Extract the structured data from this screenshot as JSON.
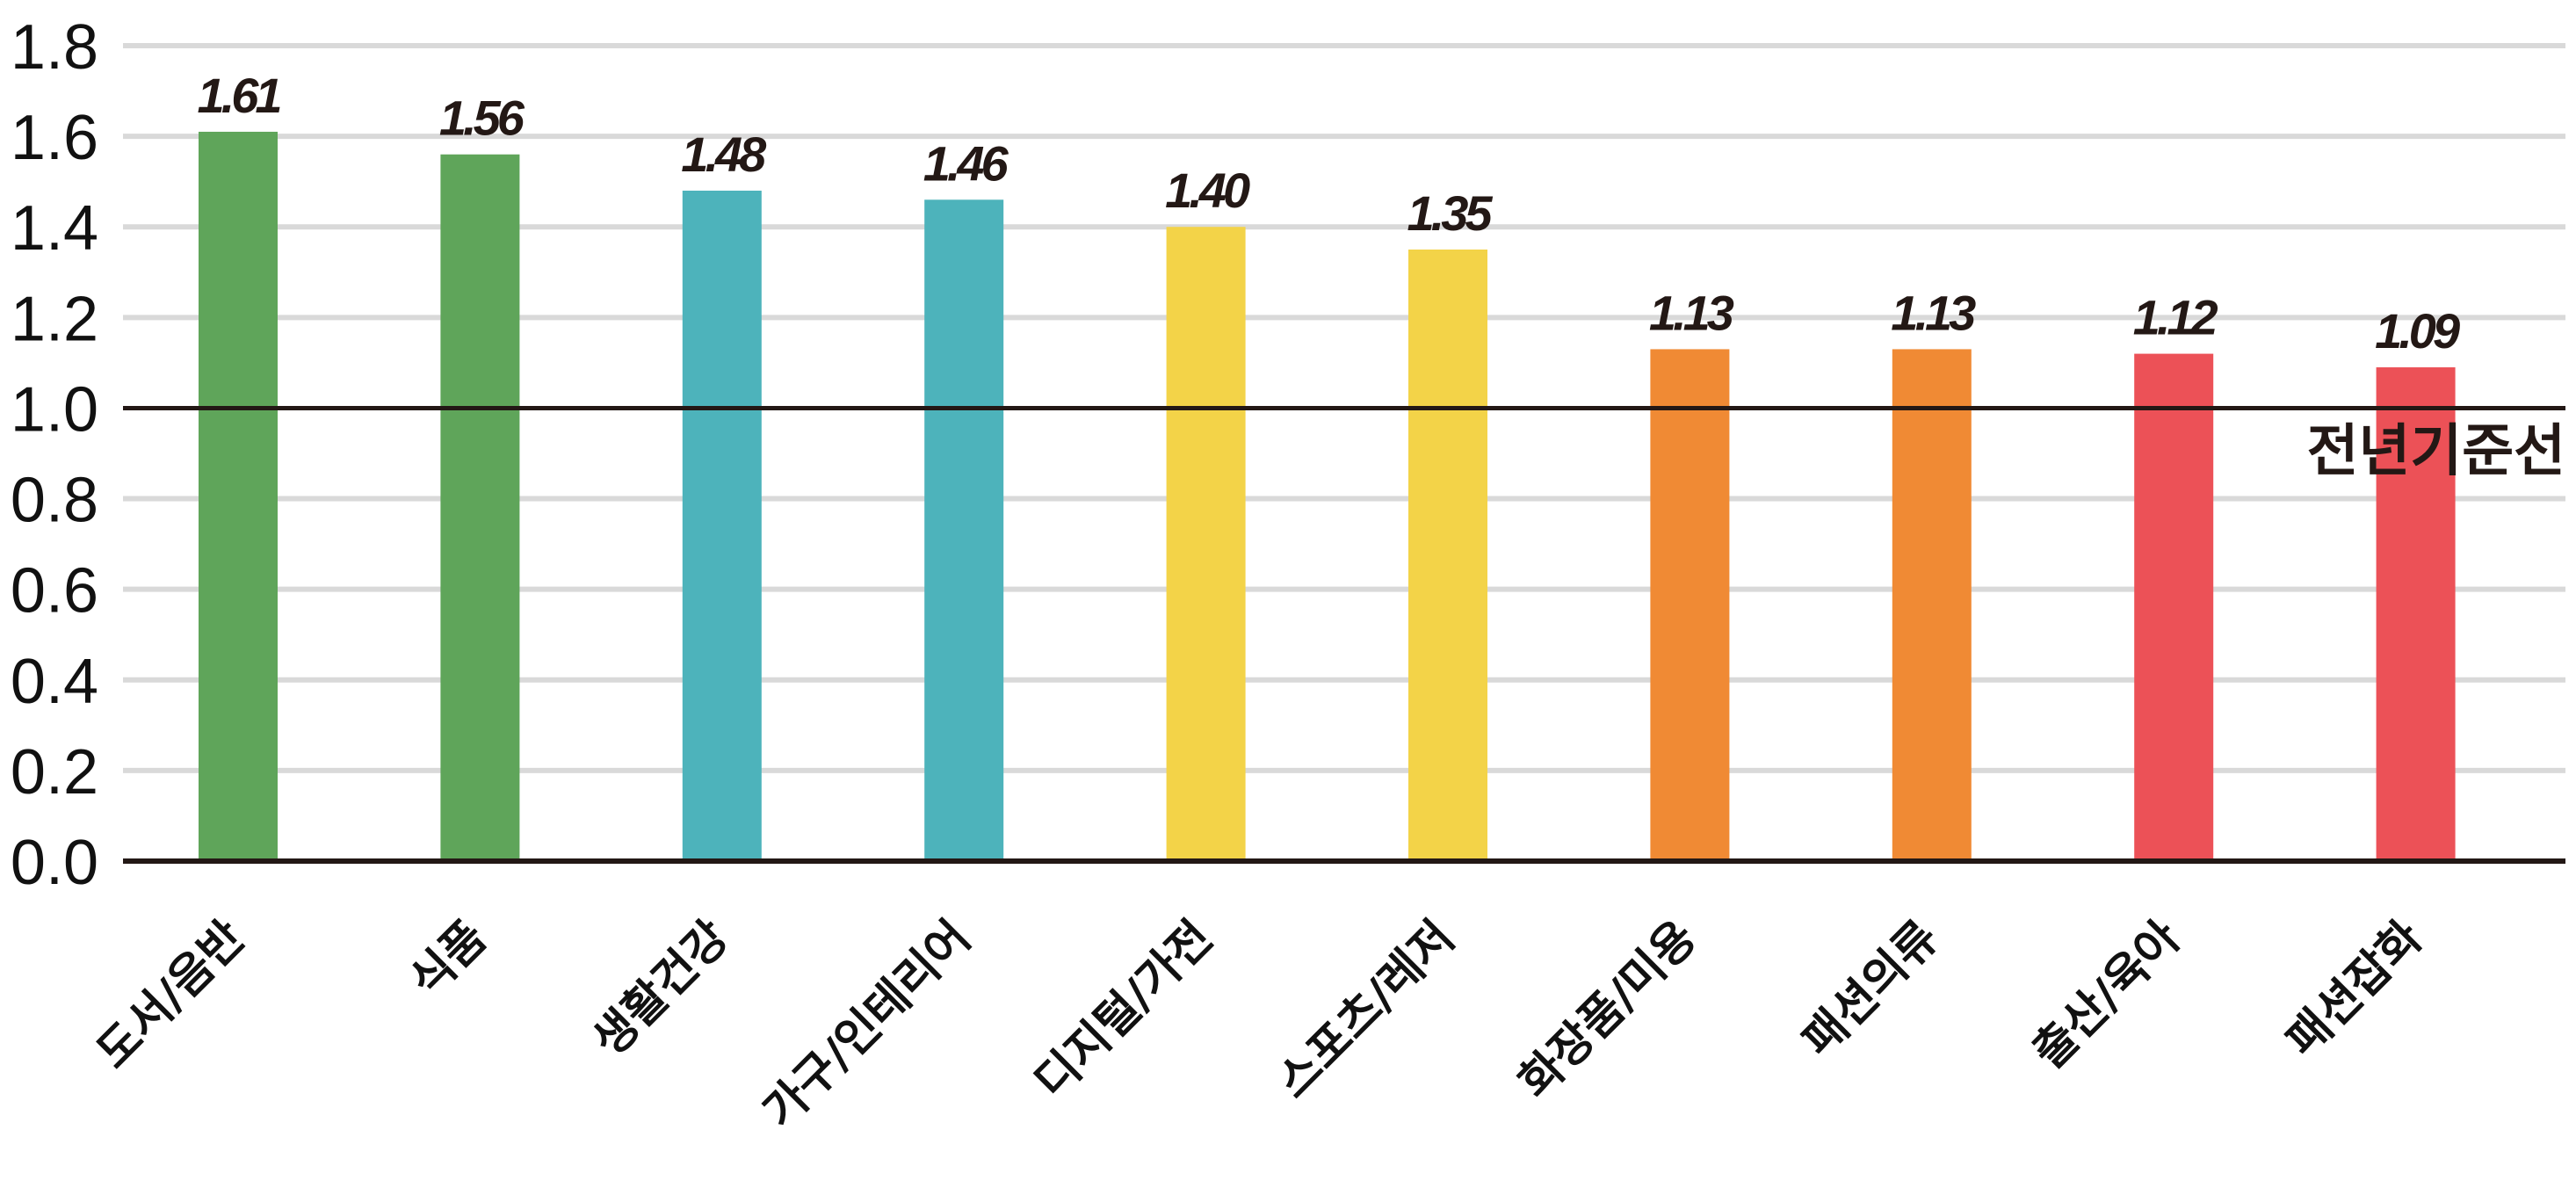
{
  "chart_data": {
    "type": "bar",
    "categories": [
      "도서/음반",
      "식품",
      "생활건강",
      "가구/인테리어",
      "디지털/가전",
      "스포츠/레저",
      "화장품/미용",
      "패션의류",
      "출산/육아",
      "패션잡화"
    ],
    "values": [
      1.61,
      1.56,
      1.48,
      1.46,
      1.4,
      1.35,
      1.13,
      1.13,
      1.12,
      1.09
    ],
    "value_labels": [
      "1.61",
      "1.56",
      "1.48",
      "1.46",
      "1.40",
      "1.35",
      "1.13",
      "1.13",
      "1.12",
      "1.09"
    ],
    "colors": [
      "#5fa55a",
      "#5fa55a",
      "#4db3bb",
      "#4db3bb",
      "#f3d348",
      "#f3d348",
      "#f08a34",
      "#f08a34",
      "#ec5157",
      "#ec5157"
    ],
    "y_ticks": [
      "0.0",
      "0.2",
      "0.4",
      "0.6",
      "0.8",
      "1.0",
      "1.2",
      "1.4",
      "1.6",
      "1.8"
    ],
    "ylim": [
      0,
      1.8
    ],
    "grid": true,
    "reference_line": {
      "value": 1.0,
      "label": "전년기준선"
    },
    "title": "",
    "xlabel": "",
    "ylabel": ""
  }
}
